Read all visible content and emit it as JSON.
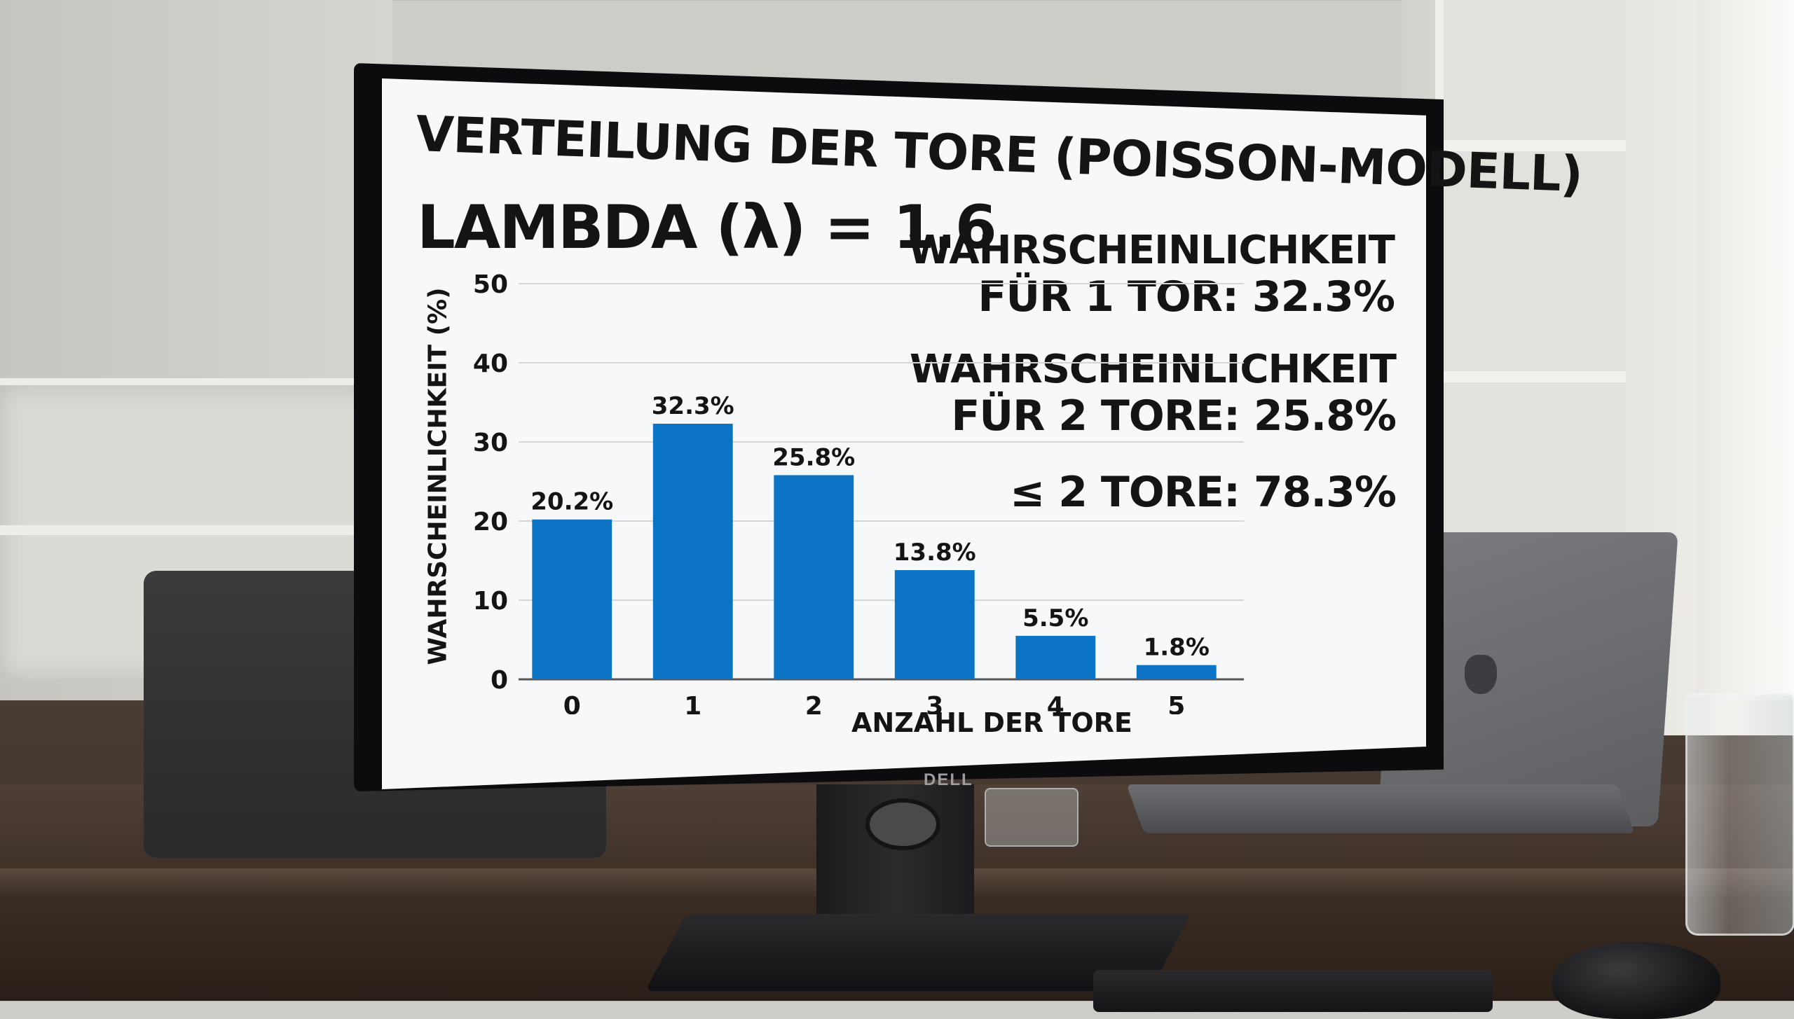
{
  "title": "VERTEILUNG DER TORE (POISSON-MODELL)",
  "lambda_text": "LAMBDA (λ) = 1.6",
  "annotations": {
    "p1_line1": "WAHRSCHEINLICHKEIT",
    "p1_line2": "FÜR 1 TOR: 32.3%",
    "p2_line1": "WAHRSCHEINLICHKEIT",
    "p2_line2": "FÜR 2 TORE: 25.8%",
    "le2": "≤ 2 TORE: 78.3%"
  },
  "monitor_brand": "DELL",
  "colors": {
    "bar": "#0b74c5",
    "text": "#141414",
    "screen": "#f7f8f9"
  },
  "chart_data": {
    "type": "bar",
    "title": "VERTEILUNG DER TORE (POISSON-MODELL)",
    "xlabel": "ANZAHL DER TORE",
    "ylabel": "WAHRSCHEINLICHKEIT (%)",
    "categories": [
      "0",
      "1",
      "2",
      "3",
      "4",
      "5"
    ],
    "values": [
      20.2,
      32.3,
      25.8,
      13.8,
      5.5,
      1.8
    ],
    "data_labels": [
      "20.2%",
      "32.3%",
      "25.8%",
      "13.8%",
      "5.5%",
      "1.8%"
    ],
    "yticks": [
      "0",
      "10",
      "20",
      "30",
      "40",
      "50"
    ],
    "ylim": [
      0,
      50
    ],
    "grid": true
  }
}
